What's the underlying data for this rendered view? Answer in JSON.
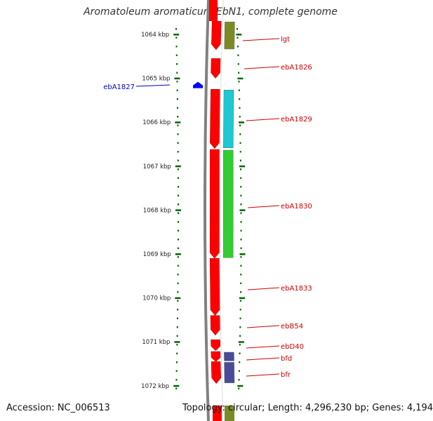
{
  "title": "Aromatoleum aromaticum EbN1, complete genome",
  "footer": {
    "accession": "Accession: NC_006513",
    "topology": "Topology: circular; Length: 4,296,230 bp; Genes: 4,194"
  },
  "ruler": {
    "ticks": [
      "1064 kbp",
      "1065 kbp",
      "1066 kbp",
      "1067 kbp",
      "1068 kbp",
      "1069 kbp",
      "1070 kbp",
      "1071 kbp",
      "1072 kbp"
    ],
    "kbp": [
      1064,
      1065,
      1066,
      1067,
      1068,
      1069,
      1070,
      1071,
      1072
    ]
  },
  "colors": {
    "cds": "#ff0000",
    "reverse_gene": "#0000ff",
    "gene_label": "#cc0000",
    "reverse_label": "#0000cc",
    "ruler": "#006600",
    "backbone": "#808080"
  },
  "genes": [
    {
      "name": "lgt",
      "start_kbp": 1063.7,
      "end_kbp": 1064.35,
      "strand": "+",
      "category_color": "#7a8b26"
    },
    {
      "name": "ebA1826",
      "start_kbp": 1064.55,
      "end_kbp": 1065.0,
      "strand": "+",
      "category_color": ""
    },
    {
      "name": "ebA1827",
      "start_kbp": 1065.1,
      "end_kbp": 1065.22,
      "strand": "-",
      "category_color": ""
    },
    {
      "name": "ebA1829",
      "start_kbp": 1065.25,
      "end_kbp": 1066.6,
      "strand": "+",
      "category_color": "#1ec8d2"
    },
    {
      "name": "ebA1830",
      "start_kbp": 1066.62,
      "end_kbp": 1069.1,
      "strand": "+",
      "category_color": "#33cc33"
    },
    {
      "name": "ebA1833",
      "start_kbp": 1069.1,
      "end_kbp": 1070.4,
      "strand": "+",
      "category_color": ""
    },
    {
      "name": "ebB54",
      "start_kbp": 1070.4,
      "end_kbp": 1070.85,
      "strand": "+",
      "category_color": ""
    },
    {
      "name": "ebD40",
      "start_kbp": 1070.95,
      "end_kbp": 1071.2,
      "strand": "+",
      "category_color": ""
    },
    {
      "name": "bfd",
      "start_kbp": 1071.22,
      "end_kbp": 1071.45,
      "strand": "+",
      "category_color": "#4a4a9a"
    },
    {
      "name": "bfr",
      "start_kbp": 1071.45,
      "end_kbp": 1071.95,
      "strand": "+",
      "category_color": "#4a4a9a"
    }
  ]
}
